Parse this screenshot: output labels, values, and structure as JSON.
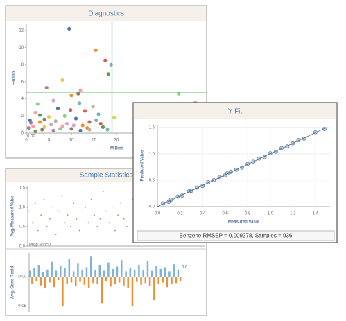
{
  "chart_data": [
    {
      "type": "scatter",
      "title": "Diagnostics",
      "x_label": "M Dist",
      "y_label": "F-Ratio",
      "x": [
        9.5,
        15.4,
        17.5,
        18.8,
        18.2,
        8,
        4.5,
        12,
        11.5,
        14.8,
        2.5,
        6,
        7,
        10,
        13,
        16,
        3,
        5,
        1,
        2,
        4,
        6.5,
        8.5,
        9,
        11,
        12.5,
        14,
        15.5,
        17,
        19.5,
        0.5,
        1.5,
        3.5,
        5.5,
        7.5,
        10.5,
        12,
        13.5,
        16.5,
        18,
        2,
        4,
        6,
        8,
        10,
        14,
        33.8,
        37.5,
        0.8,
        3,
        9.8,
        11.8
      ],
      "y": [
        12.2,
        9.7,
        8.5,
        8,
        6.9,
        6.2,
        5.3,
        5.0,
        4.6,
        3.1,
        3.4,
        3.8,
        2.9,
        4.4,
        2.6,
        2.2,
        2.1,
        1.9,
        1.2,
        2.4,
        1.6,
        1.4,
        2.0,
        1.1,
        1.7,
        0.9,
        1.3,
        1.5,
        0.7,
        1.8,
        0.6,
        0.8,
        0.4,
        1.0,
        0.5,
        0.9,
        0.3,
        0.6,
        1.1,
        0.4,
        0.2,
        0.7,
        0.3,
        0.8,
        0.5,
        0.4,
        4.6,
        3.6,
        1.5,
        1.3,
        2.7,
        3.5
      ],
      "colors": [
        "#4e79a7",
        "#f28e2b",
        "#e15759",
        "#76b7b2",
        "#59a14f",
        "#edc948",
        "#b07aa1",
        "#ff9da7",
        "#9c755f",
        "#bab0ac",
        "#8cd17d",
        "#d4a6c8"
      ],
      "xlim": [
        0,
        40
      ],
      "ylim": [
        0,
        12.8
      ],
      "xticks": [
        0,
        5,
        10,
        15,
        20
      ],
      "yticks": [
        0,
        2,
        4,
        6,
        8,
        10,
        12
      ],
      "reference_lines": {
        "x": 19,
        "y": 4.8,
        "color": "#2ea84a"
      },
      "note": "0.00",
      "grid": false
    },
    {
      "type": "scatter",
      "title": "Sample Statistics",
      "y_label": "Avg. Measured Value",
      "values": [
        0.9,
        0.6,
        1.1,
        0.4,
        0.8,
        1.2,
        0.5,
        0.7,
        1.0,
        0.3,
        0.9,
        1.3,
        0.6,
        0.8,
        0.5,
        1.1,
        0.7,
        0.4,
        0.9,
        1.0,
        0.6,
        1.2,
        0.8,
        0.5,
        0.7,
        1.4,
        0.9,
        0.6,
        1.0,
        0.4,
        0.8,
        1.1,
        0.7,
        0.5,
        0.9,
        1.2,
        0.6,
        0.8,
        1.0,
        0.3,
        0.7,
        1.1,
        0.9,
        0.5,
        0.8,
        1.3,
        0.6,
        1.0,
        0.7,
        0.4,
        0.9,
        1.1,
        0.8,
        0.6,
        1.0,
        0.7,
        0.5,
        1.2,
        0.9,
        0.8
      ],
      "color": "#c8875a",
      "ylim": [
        0,
        1.55
      ],
      "yticks": [
        {
          "value": 0,
          "label": "0.0"
        },
        0.5,
        {
          "value": 1,
          "label": "1.0"
        },
        1.5
      ],
      "note": "Prop Min=0",
      "grid": false
    },
    {
      "type": "bar",
      "y_label": "Avg. Conc Resid",
      "values": [
        0.01,
        -0.012,
        0.015,
        -0.008,
        0.02,
        -0.015,
        0.008,
        -0.02,
        0.012,
        -0.01,
        0.025,
        -0.018,
        0.01,
        -0.006,
        0.018,
        -0.05,
        0.014,
        -0.012,
        0.03,
        -0.01,
        0.009,
        -0.016,
        0.022,
        -0.009,
        0.012,
        -0.014,
        0.016,
        -0.02,
        0.035,
        -0.011,
        0.011,
        -0.013,
        0.02,
        -0.045,
        0.01,
        -0.008,
        0.024,
        -0.017,
        0.013,
        -0.012,
        0.017,
        -0.01,
        0.028,
        -0.015,
        0.009,
        -0.019,
        0.015,
        -0.05,
        0.012,
        -0.009,
        0.02,
        -0.014,
        0.011,
        -0.011,
        0.026,
        -0.016,
        0.01,
        -0.04,
        0.018,
        -0.012,
        0.013,
        -0.01,
        0.016,
        -0.018,
        0.009,
        -0.013,
        0.021,
        -0.011,
        0.012,
        -0.008
      ],
      "positive_color": "#7fb2d9",
      "negative_color": "#e8913a",
      "ylim": [
        -0.06,
        0.04
      ],
      "yticks": [
        {
          "value": 0,
          "label": "0.00"
        },
        -0.05
      ],
      "note": "0.0",
      "grid": false
    },
    {
      "type": "scatter",
      "title": "Y Fit",
      "x_label": "Measured Value",
      "y_label": "Predicted Value",
      "x": [
        0.05,
        0.1,
        0.12,
        0.18,
        0.22,
        0.28,
        0.3,
        0.35,
        0.4,
        0.45,
        0.5,
        0.55,
        0.6,
        0.65,
        0.7,
        0.75,
        0.8,
        0.85,
        0.9,
        0.95,
        1.0,
        1.05,
        1.1,
        1.15,
        1.2,
        1.25,
        1.3,
        1.4,
        1.48,
        0.62
      ],
      "y": [
        0.06,
        0.09,
        0.13,
        0.19,
        0.21,
        0.29,
        0.3,
        0.36,
        0.39,
        0.46,
        0.5,
        0.56,
        0.59,
        0.66,
        0.7,
        0.74,
        0.81,
        0.85,
        0.91,
        0.94,
        1.01,
        1.04,
        1.11,
        1.14,
        1.2,
        1.26,
        1.29,
        1.41,
        1.47,
        0.63
      ],
      "color": "#4e79a7",
      "fit_line": {
        "x": [
          0,
          1.5
        ],
        "y": [
          0,
          1.5
        ]
      },
      "xlim": [
        0,
        1.53
      ],
      "ylim": [
        0,
        1.55
      ],
      "xticks": [
        {
          "value": 0,
          "label": "0.0"
        },
        0.2,
        0.4,
        0.6,
        0.8,
        {
          "value": 1,
          "label": "1.0"
        },
        1.2,
        1.4
      ],
      "yticks": [
        {
          "value": 0,
          "label": "0.0"
        },
        0.5,
        {
          "value": 1,
          "label": "1.0"
        },
        1.5
      ],
      "footer": "Benzene RMSEP = 0.009278, Samples = 936",
      "grid": true
    }
  ]
}
